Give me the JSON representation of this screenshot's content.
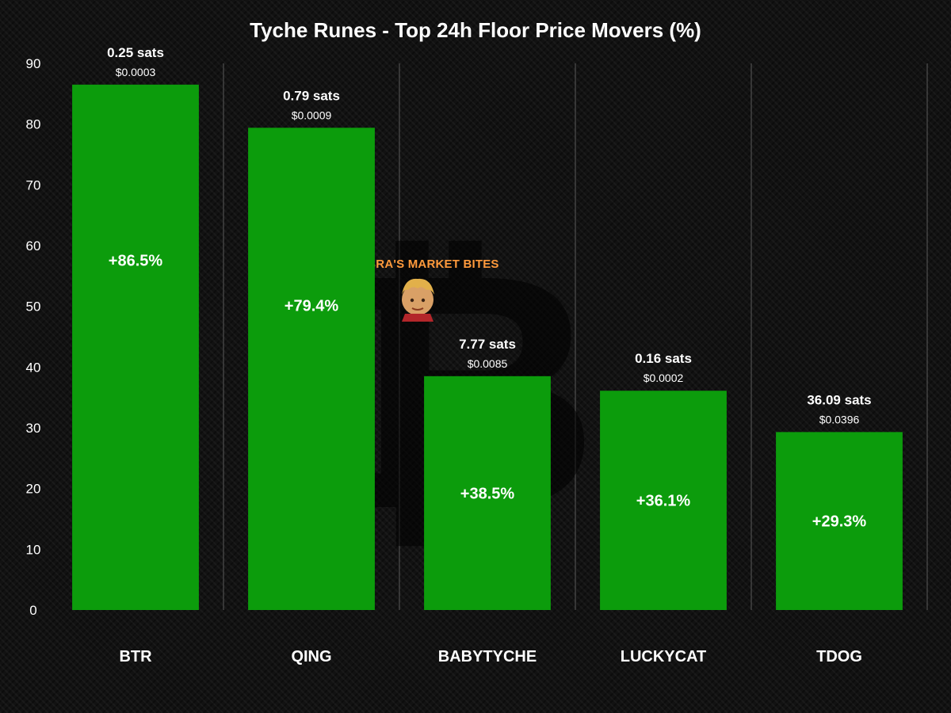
{
  "chart_data": {
    "type": "bar",
    "title": "Tyche Runes - Top 24h Floor Price Movers (%)",
    "categories": [
      "BTR",
      "QING",
      "BABYTYCHE",
      "LUCKYCAT",
      "TDOG"
    ],
    "values": [
      86.5,
      79.4,
      38.5,
      36.1,
      29.3
    ],
    "bar_labels": [
      "+86.5%",
      "+79.4%",
      "+38.5%",
      "+36.1%",
      "+29.3%"
    ],
    "floor_sats": [
      "0.25 sats",
      "0.79 sats",
      "7.77 sats",
      "0.16 sats",
      "36.09 sats"
    ],
    "floor_usd": [
      "$0.0003",
      "$0.0009",
      "$0.0085",
      "$0.0002",
      "$0.0396"
    ],
    "ylim": [
      0,
      90
    ],
    "yticks": [
      "0",
      "10",
      "20",
      "30",
      "40",
      "50",
      "60",
      "70",
      "80",
      "90"
    ],
    "xlabel": "",
    "ylabel": "",
    "grid": "vertical separators",
    "legend": "none",
    "colors": {
      "bar": "#0c9c0c",
      "background": "#121212",
      "text": "#ffffff",
      "gridline": "#5a5a5a",
      "watermark_text": "#ff9a3c"
    }
  },
  "watermark": {
    "label": "COBRA'S MARKET BITES",
    "logo_icon": "bitcoin-logo",
    "avatar_icon": "avatar-face"
  }
}
